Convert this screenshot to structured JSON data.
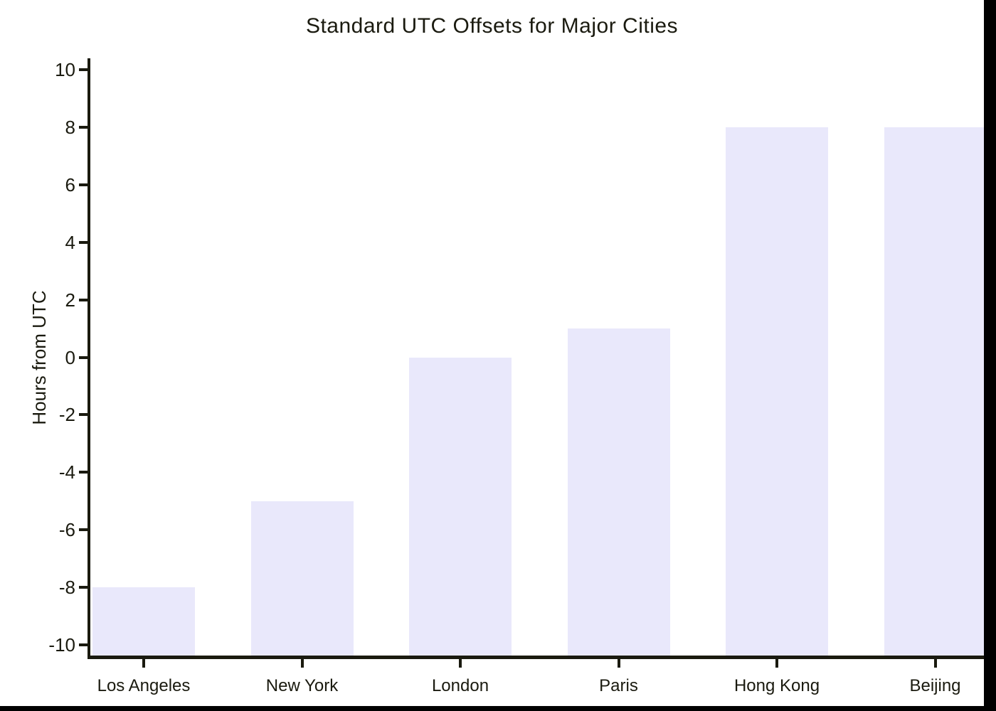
{
  "figure": {
    "page_background": "#000000",
    "figure_background": "#ffffff"
  },
  "chart_data": {
    "type": "bar",
    "title": "Standard UTC Offsets for Major Cities",
    "xlabel": "",
    "ylabel": "Hours from UTC",
    "categories": [
      "Los Angeles",
      "New York",
      "London",
      "Paris",
      "Hong Kong",
      "Beijing"
    ],
    "values": [
      -8,
      -5,
      0,
      1,
      8,
      8
    ],
    "yticks": [
      10,
      8,
      6,
      4,
      2,
      0,
      -2,
      -4,
      -6,
      -8,
      -10
    ],
    "ylim": [
      -10.45,
      10.45
    ],
    "bars_drawn_from": "bottom edge of plot up to value",
    "grid": false,
    "legend_position": "none",
    "bar_color": "#e9e8fb",
    "axis_color": "#1a1a0f",
    "text_color": "#1a1a0f"
  }
}
